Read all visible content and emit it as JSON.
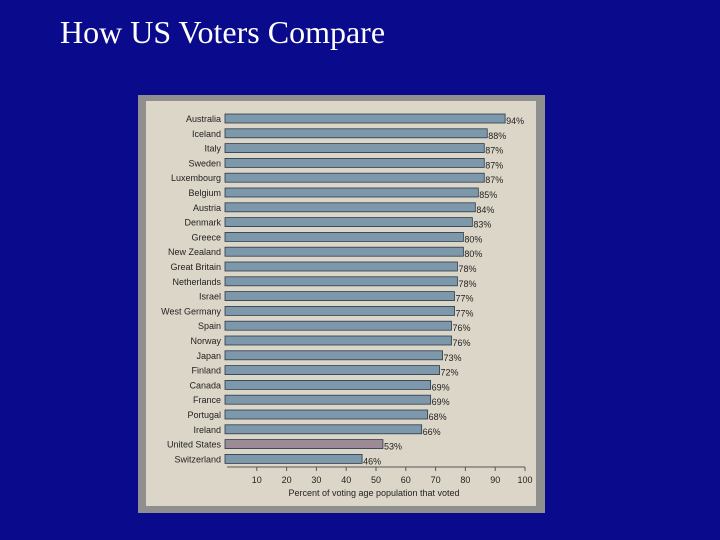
{
  "slide": {
    "title": "How US Voters Compare"
  },
  "chart_data": {
    "type": "bar",
    "orientation": "horizontal",
    "title": "",
    "xlabel": "Percent of voting age population that voted",
    "ylabel": "",
    "xlim": [
      0,
      100
    ],
    "xticks": [
      10,
      20,
      30,
      40,
      50,
      60,
      70,
      80,
      90,
      100
    ],
    "categories": [
      "Australia",
      "Iceland",
      "Italy",
      "Sweden",
      "Luxembourg",
      "Belgium",
      "Austria",
      "Denmark",
      "Greece",
      "New Zealand",
      "Great Britain",
      "Netherlands",
      "Israel",
      "West Germany",
      "Spain",
      "Norway",
      "Japan",
      "Finland",
      "Canada",
      "France",
      "Portugal",
      "Ireland",
      "United States",
      "Switzerland"
    ],
    "values": [
      94,
      88,
      87,
      87,
      87,
      85,
      84,
      83,
      80,
      80,
      78,
      78,
      77,
      77,
      76,
      76,
      73,
      72,
      69,
      69,
      68,
      66,
      53,
      46
    ],
    "value_labels": [
      "94%",
      "88%",
      "87%",
      "87%",
      "87%",
      "85%",
      "84%",
      "83%",
      "80%",
      "80%",
      "78%",
      "78%",
      "77%",
      "77%",
      "76%",
      "76%",
      "73%",
      "72%",
      "69%",
      "69%",
      "68%",
      "66%",
      "53%",
      "46%"
    ],
    "highlight_category": "United States",
    "colors": {
      "bar": "#7e98ab",
      "highlight_bar": "#9c8b96",
      "plot_background": "#dcd6c8",
      "frame": "#8f8f8f",
      "text": "#222222"
    }
  }
}
